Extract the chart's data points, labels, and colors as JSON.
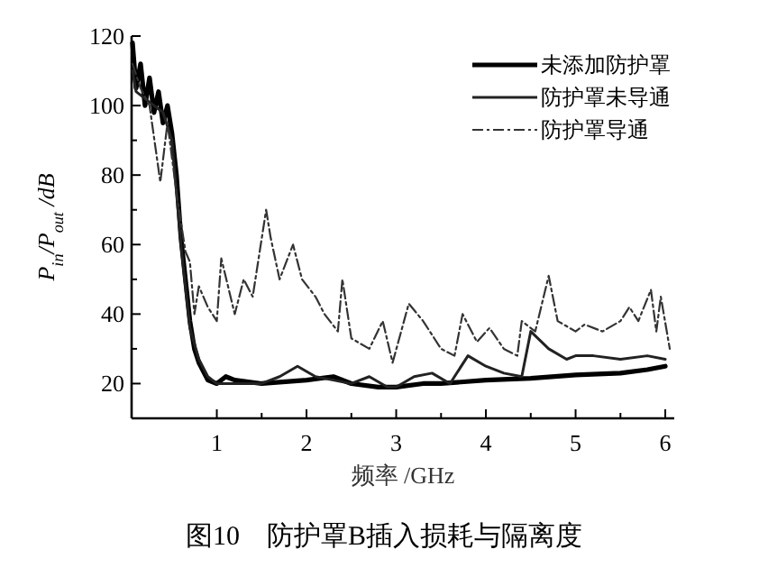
{
  "chart_data": {
    "type": "line",
    "xlabel": "频率 /GHz",
    "ylabel": "P$_{in}$/P$_{out}$ /dB",
    "annotations": [
      "图10　防护罩B插入损耗与隔离度"
    ],
    "xlim": [
      0.05,
      6.1
    ],
    "ylim": [
      10,
      120
    ],
    "xticks": [
      1,
      2,
      3,
      4,
      5,
      6
    ],
    "yticks": [
      20,
      40,
      60,
      80,
      100,
      120
    ],
    "grid": false,
    "legend": "top right",
    "marker": "none",
    "series": [
      {
        "name": "未添加防护罩",
        "color": "#000000",
        "line_style": "solid",
        "x": [
          0.06,
          0.1,
          0.15,
          0.2,
          0.25,
          0.3,
          0.35,
          0.4,
          0.45,
          0.5,
          0.55,
          0.6,
          0.65,
          0.7,
          0.75,
          0.8,
          0.9,
          1.0,
          1.1,
          1.2,
          1.5,
          2.0,
          2.3,
          2.5,
          2.8,
          3.0,
          3.3,
          3.5,
          4.0,
          4.5,
          5.0,
          5.5,
          5.8,
          6.0
        ],
        "values": [
          118,
          105,
          112,
          100,
          108,
          98,
          104,
          95,
          100,
          92,
          80,
          62,
          50,
          38,
          30,
          26,
          21,
          20,
          22,
          21,
          20,
          21,
          22,
          20,
          19,
          19,
          20,
          20,
          21,
          21.5,
          22.5,
          23,
          24,
          25
        ]
      },
      {
        "name": "防护罩未导通",
        "color": "#222222",
        "line_style": "solid",
        "x": [
          0.06,
          0.1,
          0.2,
          0.3,
          0.4,
          0.5,
          0.6,
          0.7,
          0.8,
          0.9,
          1.0,
          1.5,
          1.7,
          1.9,
          2.1,
          2.3,
          2.5,
          2.7,
          2.9,
          3.0,
          3.2,
          3.4,
          3.6,
          3.8,
          4.0,
          4.2,
          4.4,
          4.5,
          4.7,
          4.9,
          5.0,
          5.2,
          5.5,
          5.8,
          6.0
        ],
        "values": [
          110,
          104,
          102,
          100,
          98,
          90,
          60,
          36,
          27,
          22,
          20,
          20,
          22,
          25,
          22,
          21,
          20,
          22,
          19,
          19,
          22,
          23,
          20,
          28,
          25,
          23,
          22,
          35,
          30,
          27,
          28,
          28,
          27,
          28,
          27
        ]
      },
      {
        "name": "防护罩导通",
        "color": "#333333",
        "line_style": "dashed",
        "x": [
          0.06,
          0.15,
          0.25,
          0.37,
          0.45,
          0.55,
          0.65,
          0.7,
          0.75,
          0.8,
          0.9,
          1.0,
          1.05,
          1.2,
          1.3,
          1.4,
          1.55,
          1.6,
          1.7,
          1.85,
          1.95,
          2.1,
          2.2,
          2.35,
          2.4,
          2.5,
          2.7,
          2.85,
          2.96,
          3.14,
          3.3,
          3.5,
          3.65,
          3.74,
          3.9,
          4.04,
          4.2,
          4.35,
          4.4,
          4.55,
          4.7,
          4.8,
          5.0,
          5.1,
          5.3,
          5.5,
          5.6,
          5.7,
          5.84,
          5.9,
          5.95,
          6.05
        ],
        "values": [
          112,
          105,
          100,
          78,
          95,
          75,
          58,
          55,
          40,
          48,
          42,
          38,
          56,
          40,
          50,
          45,
          70,
          62,
          50,
          60,
          50,
          45,
          40,
          35,
          50,
          33,
          30,
          38,
          26,
          43,
          38,
          30,
          28,
          40,
          32,
          36,
          30,
          28,
          38,
          35,
          51,
          38,
          35,
          37,
          35,
          38,
          42,
          38,
          47,
          35,
          45,
          30
        ]
      }
    ]
  }
}
